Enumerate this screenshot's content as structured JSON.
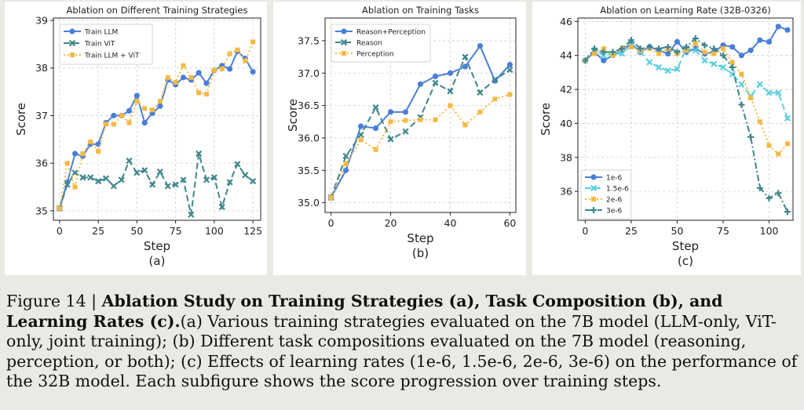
{
  "chart_data": [
    {
      "type": "line",
      "title": "Ablation on Different Training Strategies",
      "xlabel": "Step",
      "ylabel": "Score",
      "sublabel": "(a)",
      "xlim": [
        -4,
        130
      ],
      "ylim": [
        34.8,
        39.05
      ],
      "xticks": [
        0,
        25,
        50,
        75,
        100,
        125
      ],
      "yticks": [
        35,
        36,
        37,
        38,
        39
      ],
      "grid": true,
      "legend_position": "top-left",
      "series": [
        {
          "name": "Train LLM",
          "color": "#4a7fd9",
          "dash": "",
          "marker": "circle",
          "x": [
            0,
            5,
            10,
            15,
            20,
            25,
            30,
            35,
            40,
            45,
            50,
            55,
            60,
            65,
            70,
            75,
            80,
            85,
            90,
            95,
            100,
            105,
            110,
            115,
            120,
            125
          ],
          "y": [
            35.05,
            35.6,
            36.2,
            36.15,
            36.4,
            36.4,
            36.85,
            37.0,
            37.0,
            37.1,
            37.42,
            36.85,
            37.05,
            37.2,
            37.75,
            37.65,
            37.8,
            37.75,
            37.9,
            37.68,
            37.95,
            38.05,
            37.98,
            38.35,
            38.2,
            37.92
          ]
        },
        {
          "name": "Train ViT",
          "color": "#3f868c",
          "dash": "8,4",
          "marker": "x",
          "x": [
            0,
            5,
            10,
            15,
            20,
            25,
            30,
            35,
            40,
            45,
            50,
            55,
            60,
            65,
            70,
            75,
            80,
            85,
            90,
            95,
            100,
            105,
            110,
            115,
            120,
            125
          ],
          "y": [
            35.05,
            35.55,
            35.8,
            35.7,
            35.7,
            35.62,
            35.68,
            35.52,
            35.65,
            36.05,
            35.8,
            35.85,
            35.55,
            35.82,
            35.52,
            35.55,
            35.65,
            34.92,
            36.2,
            35.65,
            35.7,
            35.08,
            35.6,
            35.98,
            35.75,
            35.62
          ]
        },
        {
          "name": "Train LLM + ViT",
          "color": "#f5b942",
          "dash": "2,3",
          "marker": "square",
          "x": [
            0,
            5,
            10,
            15,
            20,
            25,
            30,
            35,
            40,
            45,
            50,
            55,
            60,
            65,
            70,
            75,
            80,
            85,
            90,
            95,
            100,
            105,
            110,
            115,
            120,
            125
          ],
          "y": [
            35.05,
            36.0,
            35.5,
            36.2,
            36.45,
            36.25,
            36.82,
            36.82,
            37.0,
            36.85,
            37.3,
            37.15,
            37.12,
            37.3,
            37.8,
            37.7,
            38.05,
            37.8,
            37.48,
            37.45,
            37.95,
            37.98,
            38.3,
            38.38,
            38.15,
            38.55
          ]
        }
      ]
    },
    {
      "type": "line",
      "title": "Ablation on Training Tasks",
      "xlabel": "Step",
      "ylabel": "Score",
      "sublabel": "(b)",
      "xlim": [
        -2,
        62
      ],
      "ylim": [
        34.85,
        37.85
      ],
      "xticks": [
        0,
        20,
        40,
        60
      ],
      "yticks": [
        35.0,
        35.5,
        36.0,
        36.5,
        37.0,
        37.5
      ],
      "grid": true,
      "legend_position": "top-left",
      "series": [
        {
          "name": "Reason+Perception",
          "color": "#4a7fd9",
          "dash": "",
          "marker": "circle",
          "x": [
            0,
            5,
            10,
            15,
            20,
            25,
            30,
            35,
            40,
            45,
            50,
            55,
            60
          ],
          "y": [
            35.08,
            35.5,
            36.18,
            36.15,
            36.4,
            36.4,
            36.83,
            36.95,
            37.0,
            37.1,
            37.42,
            36.88,
            37.13
          ]
        },
        {
          "name": "Reason",
          "color": "#3f868c",
          "dash": "8,4",
          "marker": "x",
          "x": [
            0,
            5,
            10,
            15,
            20,
            25,
            30,
            35,
            40,
            45,
            50,
            55,
            60
          ],
          "y": [
            35.08,
            35.72,
            36.05,
            36.47,
            35.98,
            36.1,
            36.32,
            36.85,
            36.72,
            37.25,
            36.7,
            36.9,
            37.05
          ]
        },
        {
          "name": "Perception",
          "color": "#f5b942",
          "dash": "2,3",
          "marker": "square",
          "x": [
            0,
            5,
            10,
            15,
            20,
            25,
            30,
            35,
            40,
            45,
            50,
            55,
            60
          ],
          "y": [
            35.08,
            35.6,
            35.97,
            35.82,
            36.25,
            36.27,
            36.28,
            36.28,
            36.5,
            36.2,
            36.4,
            36.6,
            36.67
          ]
        }
      ]
    },
    {
      "type": "line",
      "title": "Ablation on Learning Rate (32B-0326)",
      "xlabel": "Step",
      "ylabel": "Score",
      "sublabel": "(c)",
      "xlim": [
        -4,
        113
      ],
      "ylim": [
        34.3,
        46.2
      ],
      "xticks": [
        0,
        25,
        50,
        75,
        100
      ],
      "yticks": [
        36,
        38,
        40,
        42,
        44,
        46
      ],
      "grid": true,
      "legend_position": "bottom-left",
      "series": [
        {
          "name": "1e-6",
          "color": "#4a7fd9",
          "dash": "",
          "marker": "circle",
          "x": [
            0,
            5,
            10,
            15,
            20,
            25,
            30,
            35,
            40,
            45,
            50,
            55,
            60,
            65,
            70,
            75,
            80,
            85,
            90,
            95,
            100,
            105,
            110
          ],
          "y": [
            43.7,
            44.2,
            43.7,
            44.0,
            44.3,
            44.7,
            44.2,
            44.5,
            44.3,
            44.1,
            44.8,
            44.2,
            44.4,
            44.1,
            44.2,
            44.6,
            44.5,
            44.0,
            44.3,
            44.9,
            44.8,
            45.7,
            45.5
          ]
        },
        {
          "name": "1.5e-6",
          "color": "#5ad0e0",
          "dash": "8,4",
          "marker": "x",
          "x": [
            0,
            5,
            10,
            15,
            20,
            25,
            30,
            35,
            40,
            45,
            50,
            55,
            60,
            65,
            70,
            75,
            80,
            85,
            90,
            95,
            100,
            105,
            110
          ],
          "y": [
            43.7,
            44.3,
            44.0,
            44.1,
            44.1,
            44.6,
            44.2,
            43.6,
            43.3,
            43.1,
            43.2,
            44.4,
            44.3,
            43.7,
            43.5,
            43.3,
            42.9,
            42.3,
            41.6,
            42.3,
            41.8,
            41.8,
            40.3
          ]
        },
        {
          "name": "2e-6",
          "color": "#f5b942",
          "dash": "2,3",
          "marker": "square",
          "x": [
            0,
            5,
            10,
            15,
            20,
            25,
            30,
            35,
            40,
            45,
            50,
            55,
            60,
            65,
            70,
            75,
            80,
            85,
            90,
            95,
            100,
            105,
            110
          ],
          "y": [
            43.7,
            44.1,
            44.4,
            44.0,
            44.4,
            44.5,
            44.3,
            44.4,
            44.1,
            44.4,
            44.1,
            44.3,
            44.7,
            44.2,
            44.1,
            44.4,
            43.6,
            42.9,
            41.5,
            40.1,
            38.7,
            38.2,
            38.8
          ]
        },
        {
          "name": "3e-6",
          "color": "#3f868c",
          "dash": "8,3,2,3",
          "marker": "plus",
          "x": [
            0,
            5,
            10,
            15,
            20,
            25,
            30,
            35,
            40,
            45,
            50,
            55,
            60,
            65,
            70,
            75,
            80,
            85,
            90,
            95,
            100,
            105,
            110
          ],
          "y": [
            43.7,
            44.4,
            44.2,
            44.2,
            44.4,
            44.9,
            44.4,
            44.5,
            44.4,
            44.5,
            44.2,
            44.5,
            45.0,
            44.6,
            44.4,
            44.0,
            43.3,
            41.1,
            39.2,
            36.2,
            35.6,
            35.9,
            34.8
          ]
        }
      ]
    }
  ],
  "caption": {
    "figure_label": "Figure 14 | ",
    "bold_title": "Ablation Study on Training Strategies (a), Task Composition (b), and Learning Rates (c).",
    "body": "(a) Various training strategies evaluated on the 7B model (LLM-only, ViT-only, joint training); (b) Different task compositions evaluated on the 7B model (reasoning, perception, or both); (c) Effects of learning rates (1e-6, 1.5e-6, 2e-6, 3e-6) on the performance of the 32B model. Each subfigure shows the score progression over training steps."
  }
}
